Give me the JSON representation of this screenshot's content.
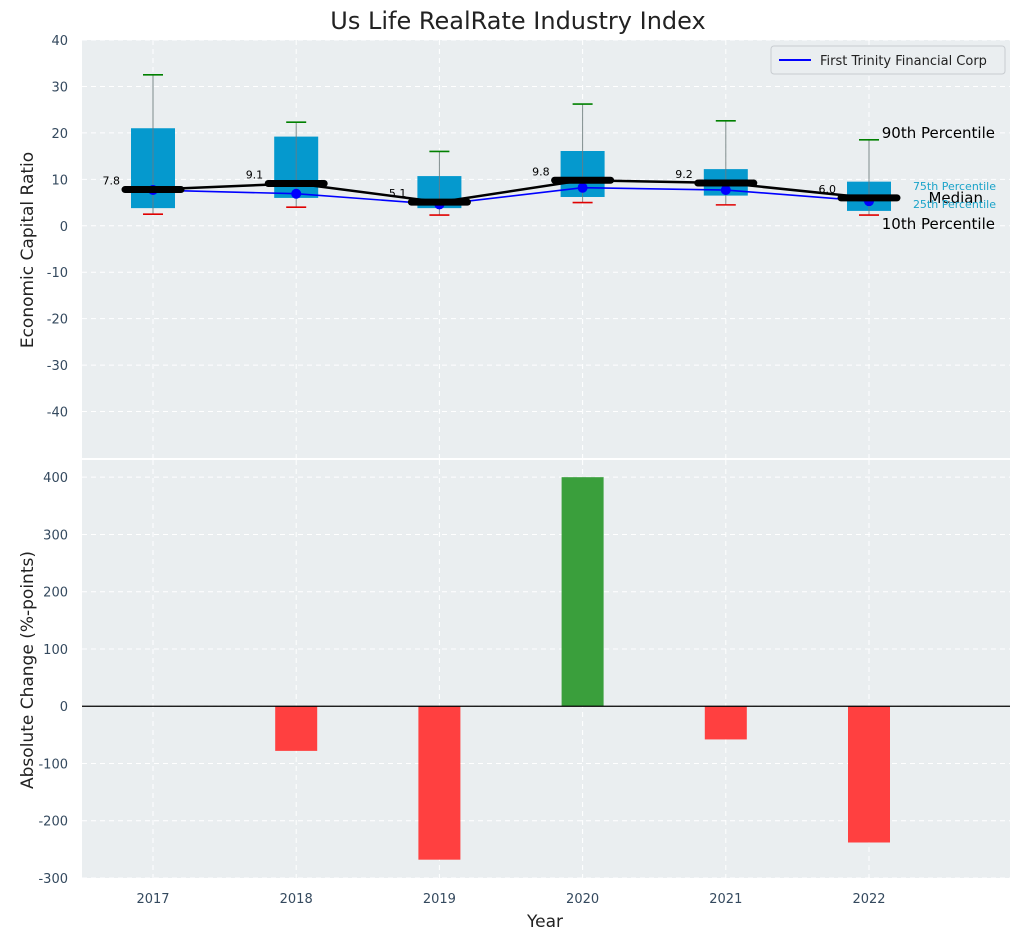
{
  "colors": {
    "background": "#eaeef0",
    "box": "#0599ce",
    "whisker_high": "#008000",
    "whisker_low": "#e00000",
    "company_line": "#0000ff",
    "median": "#000000",
    "positive": "#3a9f3c",
    "negative": "#ff4040",
    "percentile_small": "#1aa3c9"
  },
  "legend": {
    "label": "First Trinity Financial Corp"
  },
  "annotations": {
    "p90": "90th Percentile",
    "p75": "75th Percentile",
    "median": "Median",
    "p25": "25th Percentile",
    "p10": "10th Percentile"
  },
  "chart_data": [
    {
      "type": "box",
      "title": "Us Life RealRate Industry Index",
      "ylabel": "Economic Capital Ratio",
      "ylim": [
        -50,
        40
      ],
      "yticks": [
        -40,
        -30,
        -20,
        -10,
        0,
        10,
        20,
        30,
        40
      ],
      "grid": true,
      "legend_position": "top-right",
      "categories": [
        "2017",
        "2018",
        "2019",
        "2020",
        "2021",
        "2022"
      ],
      "p10": [
        2.5,
        4.0,
        2.3,
        5.0,
        4.5,
        2.3
      ],
      "p25": [
        3.8,
        6.0,
        3.8,
        6.2,
        6.5,
        3.2
      ],
      "median": [
        7.8,
        9.1,
        5.1,
        9.8,
        9.2,
        6.0
      ],
      "median_labels": [
        "7.8",
        "9.1",
        "5.1",
        "9.8",
        "9.2",
        "6.0"
      ],
      "p75": [
        21.0,
        19.2,
        10.7,
        16.1,
        12.2,
        9.5
      ],
      "p90": [
        32.5,
        22.3,
        16.0,
        26.2,
        22.6,
        18.5
      ],
      "series": [
        {
          "name": "First Trinity Financial Corp",
          "values": [
            7.7,
            6.9,
            4.6,
            8.2,
            7.7,
            5.3
          ]
        }
      ]
    },
    {
      "type": "bar",
      "xlabel": "Year",
      "ylabel": "Absolute Change (%-points)",
      "ylim": [
        -300,
        430
      ],
      "yticks": [
        -300,
        -200,
        -100,
        0,
        100,
        200,
        300,
        400
      ],
      "grid": true,
      "categories": [
        "2017",
        "2018",
        "2019",
        "2020",
        "2021",
        "2022"
      ],
      "values": [
        null,
        -78,
        -268,
        400,
        -58,
        -238
      ]
    }
  ]
}
